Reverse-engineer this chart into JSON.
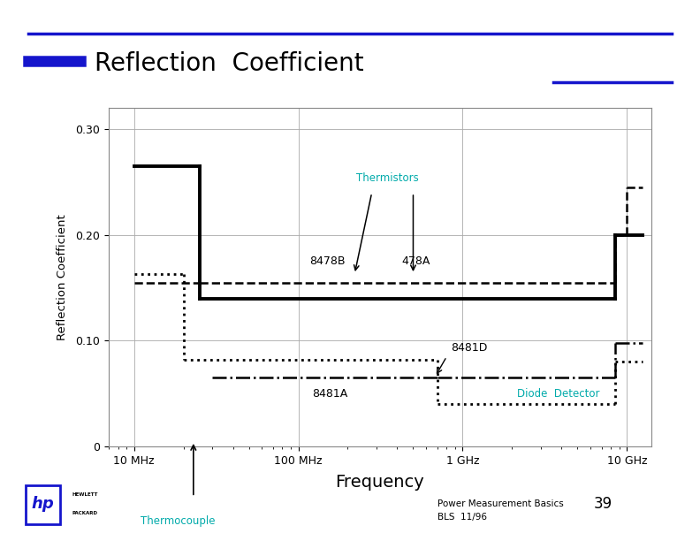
{
  "title": "Reflection  Coefficient",
  "slide_bg": "#ffffff",
  "title_color": "#000000",
  "title_fontsize": 20,
  "header_bar_color": "#1515cc",
  "ylabel": "Reflection Coefficient",
  "xlabel": "Frequency",
  "ytick_vals": [
    0,
    0.1,
    0.2,
    0.3
  ],
  "ytick_labels": [
    "0",
    "0.10",
    "0.20",
    "0.30"
  ],
  "xtick_vals": [
    10000000.0,
    100000000.0,
    1000000000.0,
    10000000000.0
  ],
  "xtick_labels": [
    "10 MHz",
    "100 MHz",
    "1 GHz",
    "10 GHz"
  ],
  "footer_text": "Power Measurement Basics",
  "footer_page": "39",
  "footer_sub": "BLS  11/96",
  "cyan": "#00aaaa",
  "black": "#000000",
  "grid_color": "#aaaaaa",
  "chart_bg": "#ffffff",
  "curve_8478B_lw": 2.8,
  "curve_478A_lw": 1.8,
  "curve_8481A_lw": 2.0,
  "curve_8481D_lw": 1.8
}
